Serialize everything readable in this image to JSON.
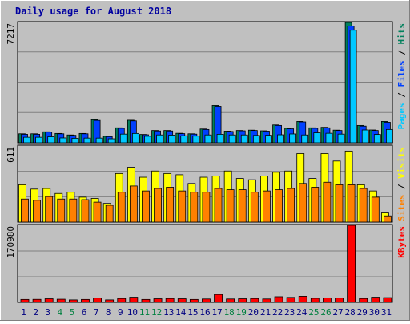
{
  "chart_data": [
    {
      "type": "bar",
      "title": "Daily usage for August 2018",
      "panel": "top",
      "ylim": [
        0,
        7217
      ],
      "ymax_label": "7217",
      "ylabel_parts": [
        "Pages",
        "Files",
        "Hits"
      ],
      "categories": [
        "1",
        "2",
        "3",
        "4",
        "5",
        "6",
        "7",
        "8",
        "9",
        "10",
        "11",
        "12",
        "13",
        "14",
        "15",
        "16",
        "17",
        "18",
        "19",
        "20",
        "21",
        "22",
        "23",
        "24",
        "25",
        "26",
        "27",
        "28",
        "29",
        "30",
        "31"
      ],
      "series": [
        {
          "name": "Hits",
          "color": "#00805c",
          "values": [
            540,
            540,
            660,
            560,
            470,
            560,
            1380,
            390,
            900,
            1350,
            500,
            740,
            740,
            570,
            540,
            830,
            2240,
            700,
            740,
            760,
            720,
            1070,
            870,
            1280,
            900,
            930,
            760,
            7217,
            1040,
            770,
            1280
          ]
        },
        {
          "name": "Files",
          "color": "#0040ff",
          "values": [
            510,
            510,
            640,
            540,
            450,
            540,
            1340,
            370,
            870,
            1310,
            480,
            710,
            710,
            550,
            520,
            800,
            2190,
            680,
            720,
            740,
            700,
            1040,
            840,
            1250,
            870,
            900,
            740,
            7000,
            1000,
            740,
            1230
          ]
        },
        {
          "name": "Pages",
          "color": "#00c8ff",
          "values": [
            330,
            330,
            360,
            290,
            270,
            280,
            280,
            240,
            520,
            560,
            390,
            470,
            460,
            420,
            400,
            470,
            510,
            470,
            470,
            440,
            450,
            480,
            530,
            470,
            600,
            570,
            520,
            6750,
            770,
            500,
            800
          ]
        }
      ]
    },
    {
      "type": "bar",
      "panel": "middle",
      "ylim": [
        0,
        611
      ],
      "ymax_label": "611",
      "ylabel_parts": [
        "Sites",
        "Visits"
      ],
      "categories": [
        "1",
        "2",
        "3",
        "4",
        "5",
        "6",
        "7",
        "8",
        "9",
        "10",
        "11",
        "12",
        "13",
        "14",
        "15",
        "16",
        "17",
        "18",
        "19",
        "20",
        "21",
        "22",
        "23",
        "24",
        "25",
        "26",
        "27",
        "28",
        "29",
        "30",
        "31"
      ],
      "series": [
        {
          "name": "Visits",
          "color": "#ffff00",
          "values": [
            300,
            265,
            270,
            230,
            240,
            200,
            190,
            150,
            390,
            440,
            360,
            410,
            390,
            380,
            310,
            360,
            370,
            410,
            350,
            340,
            370,
            400,
            410,
            550,
            350,
            550,
            490,
            570,
            300,
            250,
            80
          ]
        },
        {
          "name": "Sites",
          "color": "#ff8000",
          "values": [
            185,
            175,
            205,
            185,
            185,
            180,
            160,
            135,
            240,
            290,
            250,
            270,
            280,
            250,
            240,
            240,
            270,
            260,
            260,
            240,
            250,
            260,
            270,
            310,
            280,
            320,
            300,
            300,
            270,
            200,
            50
          ]
        }
      ]
    },
    {
      "type": "bar",
      "panel": "bottom",
      "ylim": [
        0,
        170980
      ],
      "ymax_label": "170980",
      "ylabel_parts": [
        "KBytes"
      ],
      "categories": [
        "1",
        "2",
        "3",
        "4",
        "5",
        "6",
        "7",
        "8",
        "9",
        "10",
        "11",
        "12",
        "13",
        "14",
        "15",
        "16",
        "17",
        "18",
        "19",
        "20",
        "21",
        "22",
        "23",
        "24",
        "25",
        "26",
        "27",
        "28",
        "29",
        "30",
        "31"
      ],
      "series": [
        {
          "name": "KBytes",
          "color": "#ff0000",
          "values": [
            6500,
            6700,
            8000,
            7000,
            5500,
            6500,
            9500,
            5500,
            8500,
            11500,
            6500,
            8000,
            8500,
            8000,
            6500,
            7500,
            17500,
            7500,
            8000,
            8500,
            7500,
            12500,
            11000,
            13500,
            9000,
            10000,
            9500,
            170980,
            8500,
            11500,
            10500
          ]
        }
      ]
    }
  ],
  "x_axis": {
    "weekend_color": "#008040",
    "weekday_color": "#000080",
    "weekend_days": [
      "4",
      "5",
      "11",
      "12",
      "18",
      "19",
      "25",
      "26"
    ]
  }
}
